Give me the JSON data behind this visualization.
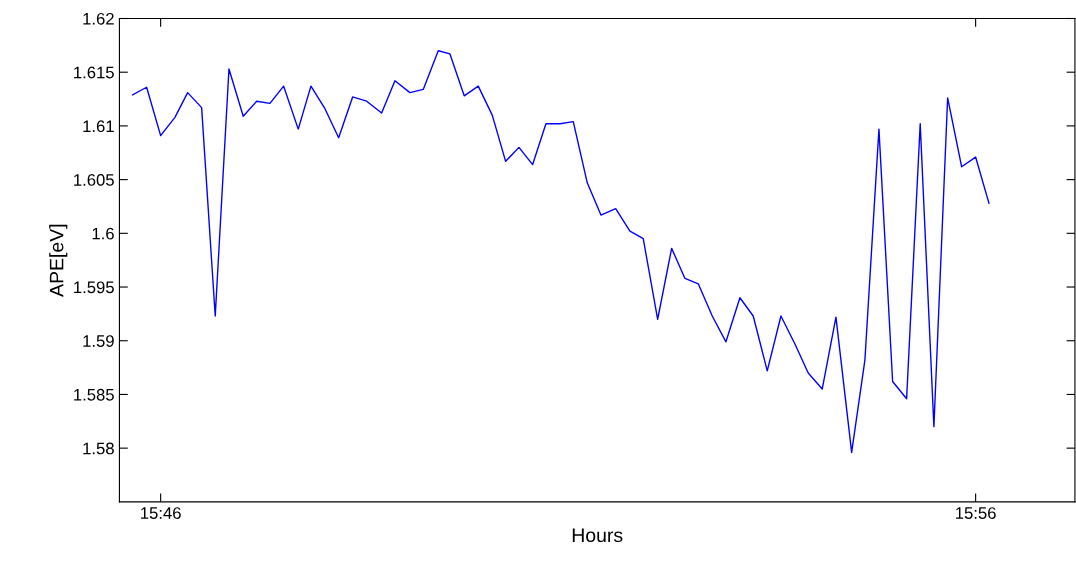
{
  "chart_data": {
    "type": "line",
    "xlabel": "Hours",
    "ylabel": "APE[eV]",
    "xlim": [
      15.75824,
      15.95364
    ],
    "xticks": [
      {
        "value": 15.766667,
        "label": "15:46"
      },
      {
        "value": 15.933333,
        "label": "15:56"
      }
    ],
    "ylim": [
      1.575,
      1.62
    ],
    "yticks": [
      1.58,
      1.585,
      1.59,
      1.595,
      1.6,
      1.605,
      1.61,
      1.615,
      1.62
    ],
    "grid": false,
    "marker": "none",
    "line_style": "solid",
    "series": [
      {
        "color": "#0000ff",
        "x": [
          15.76094,
          15.7638,
          15.76667,
          15.76959,
          15.77219,
          15.77505,
          15.77783,
          15.78064,
          15.78356,
          15.7863,
          15.78902,
          15.79182,
          15.79481,
          15.7974,
          15.80027,
          15.80307,
          15.80593,
          15.8088,
          15.81186,
          15.81458,
          15.81765,
          15.82037,
          15.82344,
          15.82583,
          15.82875,
          15.83162,
          15.83448,
          15.83722,
          15.83994,
          15.84274,
          15.84546,
          15.84833,
          15.85105,
          15.85391,
          15.85671,
          15.85972,
          15.86264,
          15.86536,
          15.86831,
          15.87117,
          15.87389,
          15.87661,
          15.87947,
          15.88227,
          15.88513,
          15.88785,
          15.89072,
          15.89352,
          15.89638,
          15.8991,
          15.90196,
          15.90477,
          15.90798,
          15.91069,
          15.91356,
          15.91636,
          15.91922,
          15.922,
          15.9248,
          15.92761,
          15.93047,
          15.93333,
          15.93606
        ],
        "values": [
          1.6129,
          1.6136,
          1.6091,
          1.6108,
          1.6131,
          1.6117,
          1.5923,
          1.6153,
          1.6109,
          1.6123,
          1.6121,
          1.6137,
          1.6097,
          1.6137,
          1.6116,
          1.6089,
          1.6127,
          1.6123,
          1.6112,
          1.6142,
          1.6131,
          1.6134,
          1.617,
          1.6167,
          1.6128,
          1.6137,
          1.611,
          1.6067,
          1.608,
          1.6064,
          1.6102,
          1.6102,
          1.6104,
          1.6047,
          1.6017,
          1.6023,
          1.6002,
          1.5995,
          1.592,
          1.5986,
          1.5958,
          1.5953,
          1.5923,
          1.5899,
          1.594,
          1.5923,
          1.5872,
          1.5923,
          1.5897,
          1.587,
          1.5855,
          1.5922,
          1.5796,
          1.5882,
          1.6097,
          1.5862,
          1.5846,
          1.6102,
          1.582,
          1.6126,
          1.6062,
          1.6071,
          1.6028
        ]
      }
    ]
  }
}
